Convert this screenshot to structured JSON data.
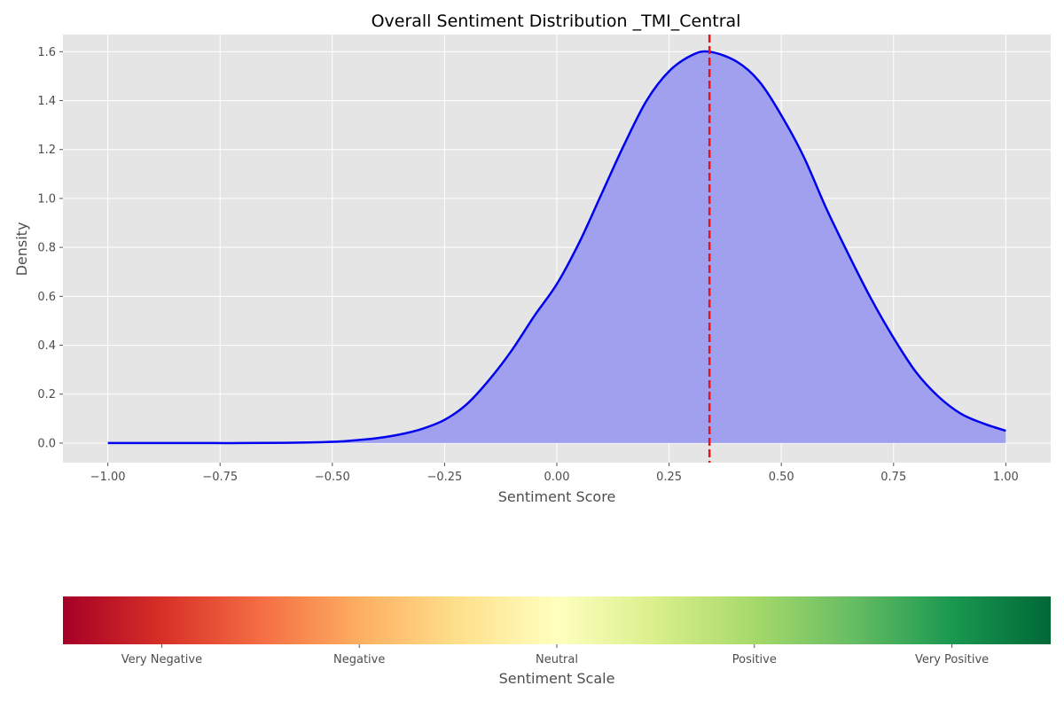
{
  "chart_data": {
    "type": "area",
    "title": "Overall Sentiment Distribution _TMI_Central",
    "xlabel": "Sentiment Score",
    "ylabel": "Density",
    "xlim": [
      -1.1,
      1.1
    ],
    "ylim": [
      -0.08,
      1.67
    ],
    "xticks": [
      -1.0,
      -0.75,
      -0.5,
      -0.25,
      0.0,
      0.25,
      0.5,
      0.75,
      1.0
    ],
    "xtick_labels": [
      "−1.00",
      "−0.75",
      "−0.50",
      "−0.25",
      "0.00",
      "0.25",
      "0.50",
      "0.75",
      "1.00"
    ],
    "yticks": [
      0.0,
      0.2,
      0.4,
      0.6,
      0.8,
      1.0,
      1.2,
      1.4,
      1.6
    ],
    "ytick_labels": [
      "0.0",
      "0.2",
      "0.4",
      "0.6",
      "0.8",
      "1.0",
      "1.2",
      "1.4",
      "1.6"
    ],
    "grid": true,
    "series": [
      {
        "x": [
          -1.0,
          -0.9,
          -0.8,
          -0.7,
          -0.6,
          -0.5,
          -0.45,
          -0.4,
          -0.35,
          -0.3,
          -0.25,
          -0.2,
          -0.15,
          -0.1,
          -0.05,
          0.0,
          0.05,
          0.1,
          0.15,
          0.2,
          0.25,
          0.3,
          0.34,
          0.4,
          0.45,
          0.5,
          0.55,
          0.6,
          0.65,
          0.7,
          0.75,
          0.8,
          0.85,
          0.9,
          0.95,
          1.0
        ],
        "y": [
          0.0,
          0.0,
          0.0,
          0.0,
          0.001,
          0.005,
          0.011,
          0.02,
          0.035,
          0.058,
          0.095,
          0.16,
          0.26,
          0.38,
          0.52,
          0.65,
          0.82,
          1.02,
          1.22,
          1.4,
          1.52,
          1.585,
          1.6,
          1.56,
          1.48,
          1.34,
          1.17,
          0.96,
          0.77,
          0.59,
          0.43,
          0.29,
          0.19,
          0.12,
          0.08,
          0.05
        ],
        "color": "#0000ee",
        "fill_color": "#a0a0ee"
      }
    ],
    "mean_line": {
      "x": 0.34,
      "color": "#ee1111"
    },
    "colorbar": {
      "label": "Sentiment Scale",
      "tick_labels": [
        "Very Negative",
        "Negative",
        "Neutral",
        "Positive",
        "Very Positive"
      ],
      "colormap": "RdYlGn",
      "stops": [
        "#a50026",
        "#d73027",
        "#f46d43",
        "#fdae61",
        "#fee08b",
        "#ffffbf",
        "#d9ef8b",
        "#a6d96a",
        "#66bd63",
        "#1a9850",
        "#006837"
      ]
    }
  }
}
